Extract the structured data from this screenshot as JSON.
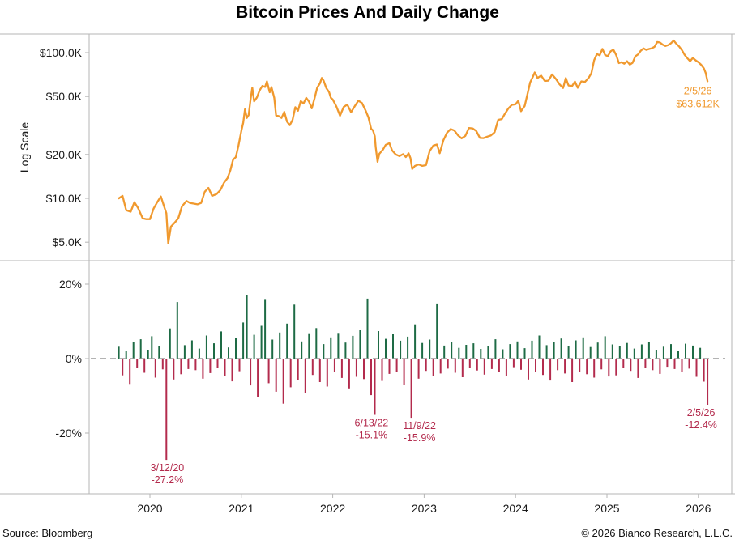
{
  "title": "Bitcoin Prices And Daily Change",
  "footer": {
    "source": "Source: Bloomberg",
    "copyright": "© 2026 Bianco Research, L.L.C."
  },
  "colors": {
    "price_line": "#F0992E",
    "positive_bar": "#1E6B45",
    "negative_bar": "#B32B4D",
    "frame": "#b5b5b5",
    "zero_line": "#9a9a9a",
    "text": "#1a1a1a"
  },
  "chart_data": [
    {
      "type": "line",
      "name": "Bitcoin price (USD thousands, log scale)",
      "panel": "price",
      "ylabel": "Log Scale",
      "yscale": "log",
      "ylim": [
        4.5,
        130
      ],
      "xlim": [
        2019.6,
        2026.15
      ],
      "y_ticks": [
        {
          "v": 100,
          "label": "$100.0K"
        },
        {
          "v": 50,
          "label": "$50.0K"
        },
        {
          "v": 20,
          "label": "$20.0K"
        },
        {
          "v": 10,
          "label": "$10.0K"
        },
        {
          "v": 5,
          "label": "$5.0K"
        }
      ],
      "annotation": {
        "t": 2026.1,
        "v": 63.612,
        "lines": [
          "2/5/26",
          "$63.612K"
        ]
      },
      "points": [
        [
          2019.66,
          10.0
        ],
        [
          2019.7,
          10.4
        ],
        [
          2019.74,
          8.3
        ],
        [
          2019.79,
          8.1
        ],
        [
          2019.83,
          9.4
        ],
        [
          2019.87,
          8.6
        ],
        [
          2019.92,
          7.3
        ],
        [
          2019.96,
          7.2
        ],
        [
          2020.0,
          7.2
        ],
        [
          2020.04,
          8.5
        ],
        [
          2020.08,
          9.4
        ],
        [
          2020.12,
          10.3
        ],
        [
          2020.15,
          9.0
        ],
        [
          2020.18,
          7.9
        ],
        [
          2020.2,
          4.9
        ],
        [
          2020.23,
          6.4
        ],
        [
          2020.27,
          6.8
        ],
        [
          2020.31,
          7.3
        ],
        [
          2020.35,
          8.8
        ],
        [
          2020.4,
          9.6
        ],
        [
          2020.44,
          9.3
        ],
        [
          2020.48,
          9.2
        ],
        [
          2020.52,
          9.1
        ],
        [
          2020.56,
          9.3
        ],
        [
          2020.6,
          11.1
        ],
        [
          2020.64,
          11.8
        ],
        [
          2020.68,
          10.4
        ],
        [
          2020.73,
          10.7
        ],
        [
          2020.77,
          11.4
        ],
        [
          2020.81,
          12.8
        ],
        [
          2020.85,
          13.8
        ],
        [
          2020.88,
          15.6
        ],
        [
          2020.91,
          18.4
        ],
        [
          2020.94,
          19.2
        ],
        [
          2020.97,
          23.2
        ],
        [
          2021.0,
          29.0
        ],
        [
          2021.02,
          33.0
        ],
        [
          2021.04,
          40.9
        ],
        [
          2021.06,
          35.6
        ],
        [
          2021.08,
          37.3
        ],
        [
          2021.1,
          47.2
        ],
        [
          2021.12,
          57.4
        ],
        [
          2021.14,
          46.3
        ],
        [
          2021.17,
          49.2
        ],
        [
          2021.2,
          55.0
        ],
        [
          2021.23,
          59.0
        ],
        [
          2021.26,
          58.1
        ],
        [
          2021.28,
          63.5
        ],
        [
          2021.31,
          53.4
        ],
        [
          2021.33,
          58.0
        ],
        [
          2021.36,
          49.0
        ],
        [
          2021.38,
          37.0
        ],
        [
          2021.41,
          36.7
        ],
        [
          2021.44,
          35.6
        ],
        [
          2021.47,
          39.2
        ],
        [
          2021.5,
          33.6
        ],
        [
          2021.53,
          31.8
        ],
        [
          2021.56,
          34.5
        ],
        [
          2021.59,
          42.2
        ],
        [
          2021.62,
          39.9
        ],
        [
          2021.65,
          46.5
        ],
        [
          2021.68,
          44.7
        ],
        [
          2021.71,
          48.9
        ],
        [
          2021.74,
          46.1
        ],
        [
          2021.77,
          41.5
        ],
        [
          2021.8,
          48.2
        ],
        [
          2021.83,
          57.5
        ],
        [
          2021.86,
          61.5
        ],
        [
          2021.88,
          67.0
        ],
        [
          2021.9,
          64.3
        ],
        [
          2021.93,
          57.0
        ],
        [
          2021.96,
          53.6
        ],
        [
          2021.98,
          48.9
        ],
        [
          2022.0,
          47.7
        ],
        [
          2022.04,
          42.7
        ],
        [
          2022.08,
          36.9
        ],
        [
          2022.12,
          42.4
        ],
        [
          2022.16,
          44.0
        ],
        [
          2022.2,
          39.0
        ],
        [
          2022.24,
          42.8
        ],
        [
          2022.28,
          46.8
        ],
        [
          2022.32,
          45.1
        ],
        [
          2022.36,
          40.0
        ],
        [
          2022.39,
          36.0
        ],
        [
          2022.42,
          30.0
        ],
        [
          2022.44,
          29.3
        ],
        [
          2022.46,
          26.7
        ],
        [
          2022.47,
          22.5
        ],
        [
          2022.49,
          17.8
        ],
        [
          2022.51,
          20.2
        ],
        [
          2022.55,
          21.6
        ],
        [
          2022.58,
          23.3
        ],
        [
          2022.62,
          23.9
        ],
        [
          2022.65,
          21.3
        ],
        [
          2022.69,
          20.0
        ],
        [
          2022.73,
          19.5
        ],
        [
          2022.77,
          20.1
        ],
        [
          2022.8,
          19.2
        ],
        [
          2022.83,
          20.4
        ],
        [
          2022.85,
          18.9
        ],
        [
          2022.87,
          15.9
        ],
        [
          2022.9,
          16.7
        ],
        [
          2022.94,
          17.1
        ],
        [
          2022.98,
          16.7
        ],
        [
          2023.02,
          16.9
        ],
        [
          2023.06,
          21.1
        ],
        [
          2023.1,
          23.0
        ],
        [
          2023.14,
          23.4
        ],
        [
          2023.17,
          20.4
        ],
        [
          2023.21,
          25.0
        ],
        [
          2023.25,
          28.2
        ],
        [
          2023.29,
          29.9
        ],
        [
          2023.33,
          29.2
        ],
        [
          2023.37,
          27.1
        ],
        [
          2023.41,
          25.8
        ],
        [
          2023.45,
          26.8
        ],
        [
          2023.49,
          30.4
        ],
        [
          2023.53,
          30.2
        ],
        [
          2023.57,
          29.0
        ],
        [
          2023.61,
          26.0
        ],
        [
          2023.65,
          25.9
        ],
        [
          2023.69,
          26.5
        ],
        [
          2023.73,
          27.0
        ],
        [
          2023.77,
          28.4
        ],
        [
          2023.81,
          34.6
        ],
        [
          2023.85,
          35.0
        ],
        [
          2023.88,
          37.8
        ],
        [
          2023.92,
          41.3
        ],
        [
          2023.96,
          43.8
        ],
        [
          2024.0,
          44.2
        ],
        [
          2024.03,
          46.8
        ],
        [
          2024.06,
          39.6
        ],
        [
          2024.1,
          43.1
        ],
        [
          2024.13,
          51.9
        ],
        [
          2024.16,
          62.4
        ],
        [
          2024.19,
          68.4
        ],
        [
          2024.21,
          73.1
        ],
        [
          2024.24,
          67.0
        ],
        [
          2024.28,
          69.5
        ],
        [
          2024.32,
          63.9
        ],
        [
          2024.36,
          64.2
        ],
        [
          2024.4,
          70.8
        ],
        [
          2024.44,
          66.2
        ],
        [
          2024.48,
          60.8
        ],
        [
          2024.52,
          57.2
        ],
        [
          2024.55,
          66.9
        ],
        [
          2024.58,
          59.5
        ],
        [
          2024.62,
          59.1
        ],
        [
          2024.65,
          63.3
        ],
        [
          2024.68,
          57.4
        ],
        [
          2024.72,
          63.5
        ],
        [
          2024.76,
          63.0
        ],
        [
          2024.8,
          67.1
        ],
        [
          2024.83,
          72.3
        ],
        [
          2024.86,
          88.7
        ],
        [
          2024.89,
          97.9
        ],
        [
          2024.92,
          95.8
        ],
        [
          2024.95,
          106.0
        ],
        [
          2024.98,
          96.4
        ],
        [
          2025.01,
          94.6
        ],
        [
          2025.04,
          102.1
        ],
        [
          2025.07,
          104.8
        ],
        [
          2025.1,
          96.5
        ],
        [
          2025.13,
          84.8
        ],
        [
          2025.16,
          86.0
        ],
        [
          2025.19,
          83.9
        ],
        [
          2025.22,
          87.3
        ],
        [
          2025.25,
          82.7
        ],
        [
          2025.28,
          85.1
        ],
        [
          2025.31,
          94.3
        ],
        [
          2025.34,
          97.2
        ],
        [
          2025.37,
          103.0
        ],
        [
          2025.4,
          106.9
        ],
        [
          2025.43,
          104.5
        ],
        [
          2025.46,
          105.9
        ],
        [
          2025.49,
          107.2
        ],
        [
          2025.52,
          109.7
        ],
        [
          2025.55,
          118.2
        ],
        [
          2025.58,
          117.3
        ],
        [
          2025.61,
          113.4
        ],
        [
          2025.64,
          111.0
        ],
        [
          2025.67,
          112.6
        ],
        [
          2025.7,
          116.0
        ],
        [
          2025.73,
          121.0
        ],
        [
          2025.76,
          114.8
        ],
        [
          2025.79,
          110.2
        ],
        [
          2025.82,
          104.0
        ],
        [
          2025.85,
          96.5
        ],
        [
          2025.88,
          91.4
        ],
        [
          2025.91,
          87.3
        ],
        [
          2025.94,
          92.0
        ],
        [
          2025.97,
          88.6
        ],
        [
          2026.0,
          86.0
        ],
        [
          2026.03,
          82.5
        ],
        [
          2026.06,
          78.0
        ],
        [
          2026.08,
          72.6
        ],
        [
          2026.1,
          63.612
        ]
      ]
    },
    {
      "type": "bar",
      "name": "Daily % change",
      "panel": "daily_change",
      "ylim": [
        -30,
        24
      ],
      "xlim": [
        2019.6,
        2026.15
      ],
      "y_ticks": [
        {
          "v": 20,
          "label": "20%"
        },
        {
          "v": 0,
          "label": "0%"
        },
        {
          "v": -20,
          "label": "-20%"
        }
      ],
      "x_ticks": [
        2020,
        2021,
        2022,
        2023,
        2024,
        2025,
        2026
      ],
      "zero_line": "dashed",
      "bars": {
        "t_start": 2019.66,
        "t_step": 0.04,
        "values": [
          3.2,
          -4.5,
          2.1,
          -6.8,
          4.4,
          -2.6,
          5.2,
          -3.8,
          2.4,
          6.0,
          -5.1,
          3.3,
          -2.9,
          -27.2,
          8.1,
          -5.6,
          15.2,
          -4.2,
          3.6,
          -2.8,
          4.9,
          -3.1,
          2.7,
          -5.4,
          6.2,
          -3.9,
          4.1,
          -2.5,
          7.3,
          -4.7,
          3.0,
          -6.1,
          5.5,
          -3.4,
          9.7,
          17.0,
          -7.2,
          6.4,
          -10.3,
          8.8,
          16.0,
          -6.6,
          5.1,
          -8.9,
          7.0,
          -12.1,
          9.4,
          -7.7,
          14.5,
          -5.8,
          4.6,
          -9.2,
          6.8,
          -4.4,
          8.2,
          -6.3,
          3.9,
          -7.5,
          5.7,
          -3.6,
          6.9,
          -5.2,
          4.3,
          -8.0,
          6.1,
          -4.9,
          7.6,
          -5.5,
          16.1,
          -9.8,
          -15.1,
          7.4,
          -6.0,
          5.3,
          -4.1,
          6.6,
          -3.7,
          4.8,
          -7.1,
          5.9,
          -15.9,
          9.2,
          -5.4,
          4.2,
          -3.3,
          5.1,
          -4.6,
          14.8,
          -4.0,
          3.5,
          -2.7,
          4.4,
          -3.8,
          2.9,
          -5.0,
          3.7,
          -2.4,
          4.1,
          -3.2,
          2.6,
          -4.3,
          3.4,
          -2.8,
          5.2,
          -3.6,
          2.5,
          -4.7,
          3.9,
          -2.3,
          4.6,
          -3.0,
          2.8,
          -5.6,
          4.8,
          -3.5,
          6.2,
          -4.4,
          3.6,
          -5.9,
          4.5,
          -3.1,
          5.4,
          -4.0,
          3.3,
          -6.3,
          4.9,
          -3.7,
          5.7,
          -4.2,
          3.1,
          -5.1,
          4.3,
          -2.9,
          6.0,
          -4.8,
          3.8,
          -4.5,
          3.4,
          -2.6,
          4.2,
          -3.3,
          2.7,
          -5.2,
          3.8,
          -2.5,
          4.4,
          -3.1,
          2.4,
          -4.1,
          3.2,
          -2.2,
          3.9,
          -2.8,
          2.1,
          -3.6,
          4.0,
          -2.7,
          3.5,
          -4.9,
          2.9,
          -6.2,
          -12.4
        ]
      },
      "annotations": [
        {
          "t": 2020.19,
          "pct": -27.2,
          "lines": [
            "3/12/20",
            "-27.2%"
          ],
          "dx": 0
        },
        {
          "t": 2022.45,
          "pct": -15.1,
          "lines": [
            "6/13/22",
            "-15.1%"
          ],
          "dx": -3
        },
        {
          "t": 2022.86,
          "pct": -15.9,
          "lines": [
            "11/9/22",
            "-15.9%"
          ],
          "dx": 10
        },
        {
          "t": 2026.1,
          "pct": -12.4,
          "lines": [
            "2/5/26",
            "-12.4%"
          ],
          "dx": -8
        }
      ]
    }
  ]
}
